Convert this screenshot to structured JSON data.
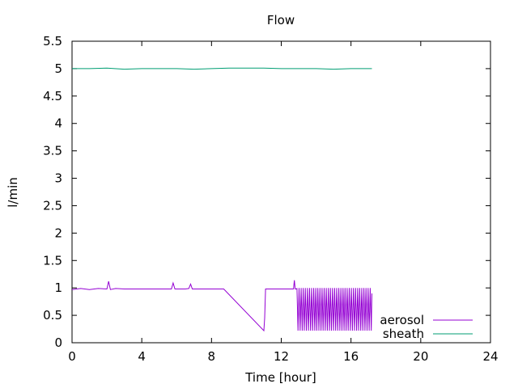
{
  "chart_data": {
    "type": "line",
    "title": "Flow",
    "xlabel": "Time [hour]",
    "ylabel": "l/min",
    "xlim": [
      0,
      24
    ],
    "ylim": [
      0,
      5.5
    ],
    "xticks": [
      0,
      4,
      8,
      12,
      16,
      20,
      24
    ],
    "yticks": [
      0,
      0.5,
      1,
      1.5,
      2,
      2.5,
      3,
      3.5,
      4,
      4.5,
      5,
      5.5
    ],
    "ytick_labels": [
      "0",
      "0.5",
      "1",
      "1.5",
      "2",
      "2.5",
      "3",
      "3.5",
      "4",
      "4.5",
      "5",
      "5.5"
    ],
    "grid": false,
    "legend_position": "bottom-right",
    "series": [
      {
        "name": "aerosol",
        "color": "#9400d3",
        "x": [
          0,
          0.5,
          1,
          1.5,
          2,
          2.1,
          2.2,
          2.5,
          3,
          4,
          5,
          5.7,
          5.8,
          5.9,
          6.5,
          6.7,
          6.8,
          6.9,
          7.5,
          8,
          8.5,
          8.7,
          11.0,
          11.05,
          11.1,
          12,
          12.5,
          12.7,
          12.75,
          12.8,
          12.9,
          13.0,
          13.2,
          13.4,
          17.2
        ],
        "y": [
          0.97,
          0.99,
          0.97,
          0.99,
          0.98,
          1.12,
          0.97,
          0.99,
          0.98,
          0.98,
          0.98,
          0.98,
          1.09,
          0.98,
          0.98,
          0.99,
          1.07,
          0.98,
          0.98,
          0.98,
          0.98,
          0.98,
          0.22,
          0.45,
          0.98,
          0.98,
          0.98,
          0.98,
          1.14,
          0.98,
          0.98,
          0.25,
          0.98,
          0.98,
          0.9
        ],
        "oscillation": {
          "start": 12.9,
          "end": 17.2,
          "low": 0.22,
          "high": 1.0,
          "period_hours": 0.12
        }
      },
      {
        "name": "sheath",
        "color": "#009e73",
        "x": [
          0,
          1,
          2,
          3,
          4,
          5,
          6,
          7,
          8,
          9,
          10,
          11,
          12,
          13,
          14,
          15,
          16,
          17.2
        ],
        "y": [
          5.0,
          5.0,
          5.01,
          4.99,
          5.0,
          5.0,
          5.0,
          4.99,
          5.0,
          5.01,
          5.01,
          5.01,
          5.0,
          5.0,
          5.0,
          4.99,
          5.0,
          5.0
        ]
      }
    ]
  }
}
